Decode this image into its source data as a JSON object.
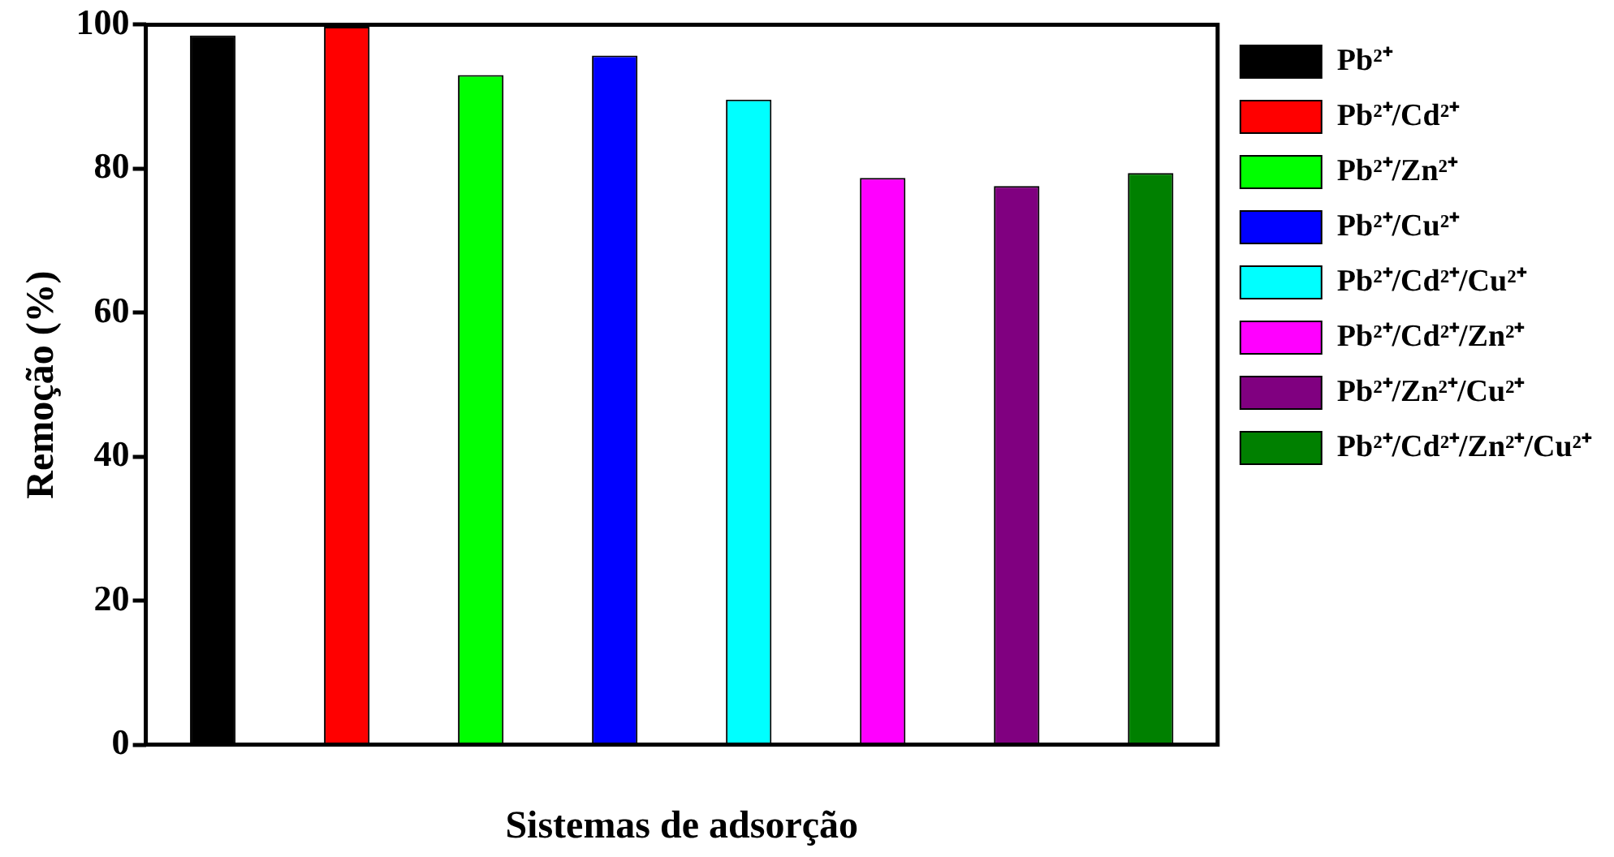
{
  "chart_data": {
    "type": "bar",
    "xlabel": "Sistemas de adsorção",
    "ylabel": "Remoção (%)",
    "categories": [
      null,
      null,
      null,
      null,
      null,
      null,
      null,
      null
    ],
    "stacked": true,
    "series": [
      {
        "name": "Pb²⁺",
        "color": "#000000",
        "values": [
          98.5,
          null,
          null,
          null,
          null,
          null,
          null,
          null
        ]
      },
      {
        "name": "Pb²⁺/Cd²⁺",
        "color": "#ff0000",
        "values": [
          null,
          99.7,
          null,
          null,
          null,
          null,
          null,
          null
        ]
      },
      {
        "name": "Pb²⁺/Zn²⁺",
        "color": "#00ff00",
        "values": [
          null,
          null,
          93.0,
          null,
          null,
          null,
          null,
          null
        ]
      },
      {
        "name": "Pb²⁺/Cu²⁺",
        "color": "#0000ff",
        "values": [
          null,
          null,
          null,
          95.7,
          null,
          null,
          null,
          null
        ]
      },
      {
        "name": "Pb²⁺/Cd²⁺/Cu²⁺",
        "color": "#00ffff",
        "values": [
          null,
          null,
          null,
          null,
          89.6,
          null,
          null,
          null
        ]
      },
      {
        "name": "Pb²⁺/Cd²⁺/Zn²⁺",
        "color": "#ff00ff",
        "values": [
          null,
          null,
          null,
          null,
          null,
          78.7,
          null,
          null
        ]
      },
      {
        "name": "Pb²⁺/Zn²⁺/Cu²⁺",
        "color": "#800080",
        "values": [
          null,
          null,
          null,
          null,
          null,
          null,
          77.6,
          null
        ]
      },
      {
        "name": "Pb²⁺/Cd²⁺/Zn²⁺/Cu²⁺",
        "color": "#008000",
        "values": [
          null,
          null,
          null,
          null,
          null,
          null,
          null,
          79.4
        ]
      }
    ],
    "ylim": [
      0,
      100
    ],
    "yticks": [
      0,
      20,
      40,
      60,
      80,
      100
    ],
    "legend": "right"
  }
}
